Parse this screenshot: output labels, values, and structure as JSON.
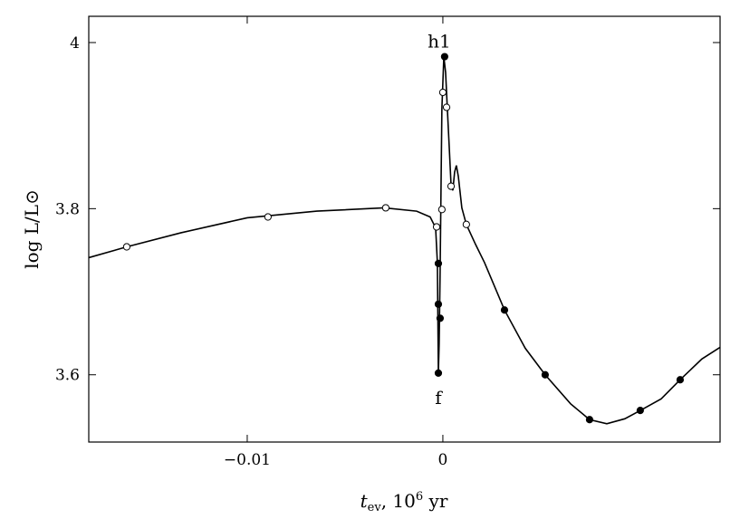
{
  "chart_data": {
    "type": "line",
    "xlabel": [
      "t",
      "ev",
      ", 10",
      "6",
      " yr"
    ],
    "ylabel": "log L/L⊙",
    "annotations": [
      "h1",
      "f"
    ],
    "xlim": [
      -0.0181,
      0.01417
    ],
    "xticks": [
      {
        "value": -0.01,
        "label": "−0.01"
      },
      0
    ],
    "ylim": [
      3.519,
      4.0316
    ],
    "yticks": [
      3.6,
      3.8,
      4
    ],
    "series": [
      {
        "color": "#000000",
        "marker": "none",
        "x": [
          -0.0181,
          -0.01616,
          -0.01338,
          -0.01,
          -0.00644,
          -0.003,
          -0.00134,
          -0.00065,
          -0.00037,
          -0.00028,
          -0.00023,
          -0.00019,
          -0.00014,
          -9e-05,
          -5e-05,
          5e-05,
          0.00014,
          0.00023,
          0.00032,
          0.00042,
          0.00051,
          0.0006,
          0.00069,
          0.00079,
          0.00097,
          0.0012,
          0.00167,
          0.00213,
          0.00315,
          0.00421,
          0.00523,
          0.00653,
          0.0075,
          0.00838,
          0.0093,
          0.01009,
          0.01116,
          0.01213,
          0.01324,
          0.01417
        ],
        "values": [
          3.741,
          3.754,
          3.771,
          3.789,
          3.797,
          3.801,
          3.797,
          3.79,
          3.777,
          3.735,
          3.602,
          3.637,
          3.724,
          3.833,
          3.92,
          3.983,
          3.964,
          3.92,
          3.877,
          3.828,
          3.822,
          3.844,
          3.852,
          3.839,
          3.801,
          3.781,
          3.757,
          3.735,
          3.678,
          3.632,
          3.6,
          3.565,
          3.546,
          3.541,
          3.547,
          3.557,
          3.571,
          3.594,
          3.619,
          3.633
        ]
      },
      {
        "color": "#000000",
        "marker": "open",
        "x": [
          -0.01616,
          -0.00894,
          -0.00292,
          -0.00032,
          -5e-05,
          0,
          0.00019,
          0.00042,
          0.0012
        ],
        "values": [
          3.754,
          3.79,
          3.801,
          3.778,
          3.799,
          3.94,
          3.922,
          3.827,
          3.781
        ]
      },
      {
        "color": "#000000",
        "marker": "filled",
        "x": [
          9e-05,
          -0.00023,
          -0.00023,
          -0.00014,
          -0.00023,
          0.00315,
          0.00523,
          0.0075,
          0.01009,
          0.01213
        ],
        "values": [
          3.983,
          3.734,
          3.685,
          3.668,
          3.602,
          3.678,
          3.6,
          3.546,
          3.557,
          3.594
        ]
      }
    ]
  }
}
